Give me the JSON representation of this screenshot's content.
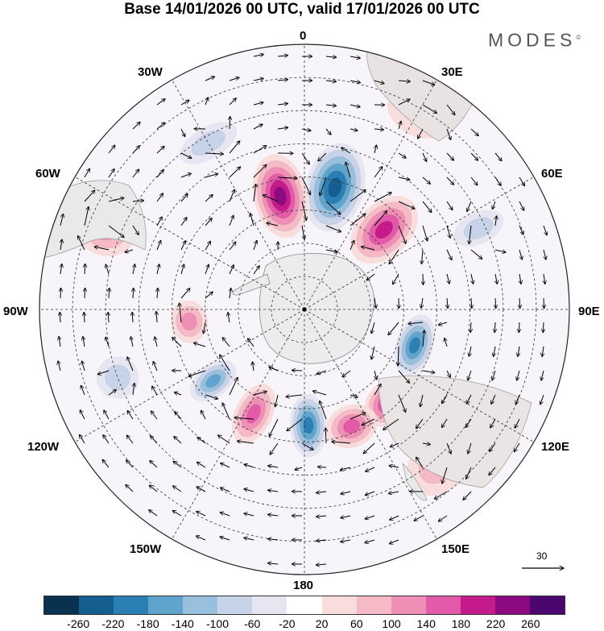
{
  "title": "Base 14/01/2026 00 UTC, valid 17/01/2026 00 UTC",
  "brand": {
    "name": "MODES",
    "mark": "©"
  },
  "lon_labels": {
    "l0": "0",
    "l30e": "30E",
    "l60e": "60E",
    "l90e": "90E",
    "l120e": "120E",
    "l150e": "150E",
    "l180": "180",
    "l150w": "150W",
    "l120w": "120W",
    "l90w": "90W",
    "l60w": "60W",
    "l30w": "30W"
  },
  "vector_scale": {
    "value": "30"
  },
  "colorbar": {
    "colors": [
      "#08324f",
      "#145f8f",
      "#2a7fb5",
      "#5fa4cd",
      "#98bfdc",
      "#c7d3e8",
      "#e6e6f2",
      "#ffffff",
      "#f9dcdc",
      "#f6b9c6",
      "#f08fb6",
      "#e35aa8",
      "#c51b8a",
      "#8e0a82",
      "#4c0670"
    ],
    "ticks": [
      "-260",
      "-220",
      "-180",
      "-140",
      "-100",
      "-60",
      "-20",
      "20",
      "60",
      "100",
      "140",
      "180",
      "220",
      "260"
    ]
  },
  "anomalies": [
    {
      "lon": 14,
      "lat": -52,
      "value": -240,
      "rx": 0.11,
      "ry": 0.17
    },
    {
      "lon": -12,
      "lat": -55,
      "value": 230,
      "rx": 0.1,
      "ry": 0.16
    },
    {
      "lon": 45,
      "lat": -56,
      "value": 200,
      "rx": 0.1,
      "ry": 0.15
    },
    {
      "lon": 108,
      "lat": -55,
      "value": -180,
      "rx": 0.12,
      "ry": 0.07
    },
    {
      "lon": 138,
      "lat": -52,
      "value": 185,
      "rx": 0.1,
      "ry": 0.08
    },
    {
      "lon": 158,
      "lat": -52,
      "value": 175,
      "rx": 0.1,
      "ry": 0.08
    },
    {
      "lon": 178,
      "lat": -55,
      "value": -190,
      "rx": 0.07,
      "ry": 0.12
    },
    {
      "lon": -154,
      "lat": -55,
      "value": 160,
      "rx": 0.07,
      "ry": 0.12
    },
    {
      "lon": -128,
      "lat": -55,
      "value": -140,
      "rx": 0.06,
      "ry": 0.1
    },
    {
      "lon": -96,
      "lat": -55,
      "value": 130,
      "rx": 0.08,
      "ry": 0.07
    },
    {
      "lon": -68,
      "lat": -25,
      "value": 100,
      "rx": 0.1,
      "ry": 0.12
    },
    {
      "lon": -30,
      "lat": -32,
      "value": -70,
      "rx": 0.12,
      "ry": 0.06
    },
    {
      "lon": 65,
      "lat": -32,
      "value": -70,
      "rx": 0.06,
      "ry": 0.1
    },
    {
      "lon": -110,
      "lat": -30,
      "value": -60,
      "rx": 0.08,
      "ry": 0.08
    },
    {
      "lon": 140,
      "lat": -28,
      "value": 60,
      "rx": 0.12,
      "ry": 0.1
    },
    {
      "lon": 30,
      "lat": -22,
      "value": 50,
      "rx": 0.12,
      "ry": 0.08
    }
  ]
}
